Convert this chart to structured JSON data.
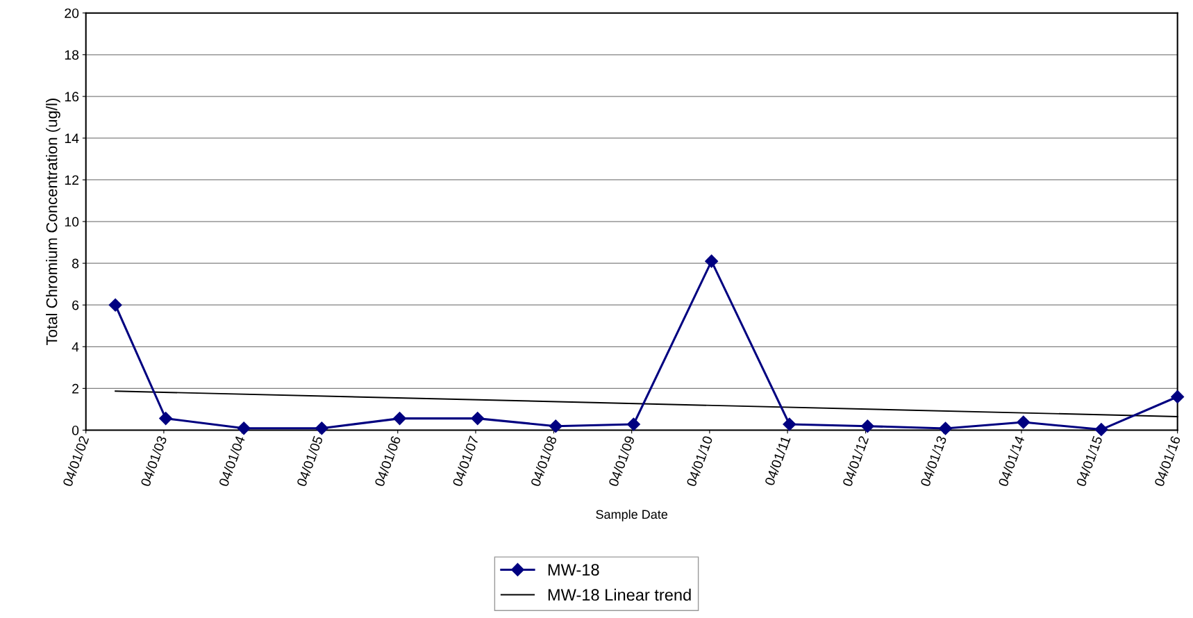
{
  "chart_data": {
    "type": "line",
    "xlabel": "Sample Date",
    "ylabel": "Total Chromium Concentration (ug/l)",
    "x": [
      "2002-08-17",
      "2003-04-10",
      "2004-04-10",
      "2005-04-10",
      "2006-04-10",
      "2007-04-10",
      "2008-04-10",
      "2009-04-10",
      "2010-04-10",
      "2011-04-10",
      "2012-04-10",
      "2013-04-10",
      "2014-04-10",
      "2015-04-10",
      "2016-04-01"
    ],
    "series": [
      {
        "name": "MW-18",
        "color": "#000080",
        "marker": "diamond",
        "values": [
          6.0,
          0.56,
          0.09,
          0.09,
          0.56,
          0.56,
          0.19,
          0.28,
          8.1,
          0.28,
          0.19,
          0.08,
          0.38,
          0.03,
          1.6
        ]
      },
      {
        "name": "MW-18 Linear trend",
        "color": "#000000",
        "marker": "none",
        "x": [
          "2002-08-17",
          "2016-04-01"
        ],
        "values": [
          1.87,
          0.65
        ]
      }
    ],
    "xlim": [
      "2002-04-01",
      "2016-04-01"
    ],
    "xticks": [
      {
        "value": "2002-04-01",
        "label": "04/01/02"
      },
      {
        "value": "2003-04-01",
        "label": "04/01/03"
      },
      {
        "value": "2004-04-01",
        "label": "04/01/04"
      },
      {
        "value": "2005-04-01",
        "label": "04/01/05"
      },
      {
        "value": "2006-04-01",
        "label": "04/01/06"
      },
      {
        "value": "2007-04-01",
        "label": "04/01/07"
      },
      {
        "value": "2008-04-01",
        "label": "04/01/08"
      },
      {
        "value": "2009-04-01",
        "label": "04/01/09"
      },
      {
        "value": "2010-04-01",
        "label": "04/01/10"
      },
      {
        "value": "2011-04-01",
        "label": "04/01/11"
      },
      {
        "value": "2012-04-01",
        "label": "04/01/12"
      },
      {
        "value": "2013-04-01",
        "label": "04/01/13"
      },
      {
        "value": "2014-04-01",
        "label": "04/01/14"
      },
      {
        "value": "2015-04-01",
        "label": "04/01/15"
      },
      {
        "value": "2016-04-01",
        "label": "04/01/16"
      }
    ],
    "ylim": [
      0,
      20
    ],
    "yticks": [
      0,
      2,
      4,
      6,
      8,
      10,
      12,
      14,
      16,
      18,
      20
    ],
    "grid": "y",
    "legend": "bottom"
  }
}
